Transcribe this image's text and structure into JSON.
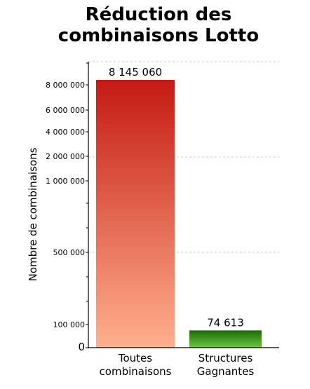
{
  "chart_data": {
    "type": "bar",
    "title_lines": [
      "Réduction des",
      "combinaisons Lotto"
    ],
    "ylabel": "Nombre de combinaisons",
    "xlabel": "",
    "categories": [
      [
        "Toutes",
        "combinaisons"
      ],
      [
        "Structures",
        "Gagnantes"
      ]
    ],
    "values": [
      8145060,
      74613
    ],
    "value_labels": [
      "8 145 060",
      "74 613"
    ],
    "yticks": [
      {
        "value": 0,
        "label": "0"
      },
      {
        "value": 100000,
        "label": "100 000"
      },
      {
        "value": 500000,
        "label": "500 000"
      },
      {
        "value": 1000000,
        "label": "1 000 000"
      },
      {
        "value": 2000000,
        "label": "2 000 000"
      },
      {
        "value": 4000000,
        "label": "4 000 000"
      },
      {
        "value": 6000000,
        "label": "6 000 000"
      },
      {
        "value": 8000000,
        "label": "8 000 000"
      }
    ],
    "y_scale": "non-linear (compressed upper range)",
    "grid": "horizontal dashed",
    "colors": {
      "bar1_top": "#c41a12",
      "bar1_bottom": "#ffb08e",
      "bar2_top": "#1f6a0b",
      "bar2_bottom": "#6ac73e",
      "grid": "#c8c8c8",
      "axis": "#000000"
    }
  }
}
